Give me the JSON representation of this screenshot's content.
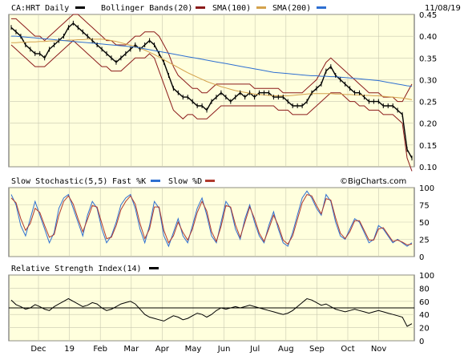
{
  "header": {
    "symbol_label": "CA:HRT Daily",
    "bb_label": "Bollinger Bands(20)",
    "sma100_label": "SMA(100)",
    "sma200_label": "SMA(200)",
    "date": "11/08/19"
  },
  "stoch_header": {
    "title": "Slow Stochastic(5,5)",
    "fast_label": "Fast %K",
    "slow_label": "Slow %D",
    "credit": "©BigCharts.com"
  },
  "rsi_header": {
    "title": "Relative Strength Index(14)"
  },
  "colors": {
    "price": "#000000",
    "bb": "#8b1a1a",
    "sma100": "#d4a24c",
    "sma200": "#2e6fd1",
    "fastk": "#2e6fd1",
    "slowd": "#b03a2e",
    "rsi": "#000000",
    "panel_bg": "#ffffdd"
  },
  "chart_data": [
    {
      "type": "line",
      "title": "CA:HRT Daily",
      "x_axis_labels": [
        "Dec",
        "19",
        "Feb",
        "Mar",
        "Apr",
        "May",
        "Jun",
        "Jul",
        "Aug",
        "Sep",
        "Oct",
        "Nov"
      ],
      "ylim": [
        0.1,
        0.45
      ],
      "yticks": [
        "0.10",
        "0.15",
        "0.20",
        "0.25",
        "0.30",
        "0.35",
        "0.40",
        "0.45"
      ],
      "series": [
        {
          "name": "CA:HRT Daily",
          "values": [
            0.42,
            0.41,
            0.4,
            0.38,
            0.37,
            0.36,
            0.36,
            0.35,
            0.37,
            0.38,
            0.39,
            0.4,
            0.42,
            0.43,
            0.42,
            0.41,
            0.4,
            0.39,
            0.38,
            0.37,
            0.36,
            0.35,
            0.34,
            0.35,
            0.36,
            0.37,
            0.38,
            0.37,
            0.38,
            0.39,
            0.38,
            0.36,
            0.34,
            0.31,
            0.28,
            0.27,
            0.26,
            0.26,
            0.25,
            0.24,
            0.24,
            0.23,
            0.25,
            0.26,
            0.27,
            0.26,
            0.25,
            0.26,
            0.27,
            0.26,
            0.27,
            0.26,
            0.27,
            0.27,
            0.27,
            0.26,
            0.26,
            0.26,
            0.25,
            0.24,
            0.24,
            0.24,
            0.25,
            0.27,
            0.28,
            0.29,
            0.32,
            0.33,
            0.31,
            0.3,
            0.29,
            0.28,
            0.27,
            0.27,
            0.26,
            0.25,
            0.25,
            0.25,
            0.24,
            0.24,
            0.24,
            0.23,
            0.22,
            0.14,
            0.12
          ]
        },
        {
          "name": "Bollinger Bands(20) upper",
          "values": [
            0.44,
            0.44,
            0.43,
            0.42,
            0.41,
            0.4,
            0.4,
            0.39,
            0.4,
            0.41,
            0.42,
            0.43,
            0.44,
            0.45,
            0.45,
            0.44,
            0.43,
            0.42,
            0.41,
            0.4,
            0.39,
            0.39,
            0.38,
            0.38,
            0.38,
            0.39,
            0.4,
            0.4,
            0.41,
            0.41,
            0.41,
            0.4,
            0.38,
            0.36,
            0.33,
            0.31,
            0.3,
            0.29,
            0.28,
            0.28,
            0.27,
            0.27,
            0.28,
            0.29,
            0.29,
            0.29,
            0.29,
            0.29,
            0.29,
            0.29,
            0.29,
            0.28,
            0.28,
            0.28,
            0.28,
            0.28,
            0.28,
            0.27,
            0.27,
            0.27,
            0.27,
            0.27,
            0.28,
            0.29,
            0.3,
            0.32,
            0.34,
            0.35,
            0.34,
            0.33,
            0.32,
            0.31,
            0.3,
            0.29,
            0.28,
            0.27,
            0.27,
            0.27,
            0.26,
            0.26,
            0.26,
            0.25,
            0.25,
            0.27,
            0.29
          ]
        },
        {
          "name": "Bollinger Bands(20) lower",
          "values": [
            0.38,
            0.37,
            0.36,
            0.35,
            0.34,
            0.33,
            0.33,
            0.33,
            0.34,
            0.35,
            0.36,
            0.37,
            0.38,
            0.39,
            0.38,
            0.37,
            0.36,
            0.35,
            0.34,
            0.33,
            0.33,
            0.32,
            0.32,
            0.32,
            0.33,
            0.34,
            0.35,
            0.35,
            0.35,
            0.36,
            0.35,
            0.32,
            0.29,
            0.26,
            0.23,
            0.22,
            0.21,
            0.22,
            0.22,
            0.21,
            0.21,
            0.21,
            0.22,
            0.23,
            0.24,
            0.24,
            0.24,
            0.24,
            0.24,
            0.24,
            0.24,
            0.24,
            0.24,
            0.24,
            0.24,
            0.24,
            0.23,
            0.23,
            0.23,
            0.22,
            0.22,
            0.22,
            0.22,
            0.23,
            0.24,
            0.25,
            0.26,
            0.27,
            0.27,
            0.27,
            0.26,
            0.25,
            0.25,
            0.24,
            0.24,
            0.23,
            0.23,
            0.23,
            0.22,
            0.22,
            0.22,
            0.21,
            0.2,
            0.12,
            0.09
          ]
        },
        {
          "name": "SMA(100)",
          "values": [
            0.385,
            0.385,
            0.386,
            0.386,
            0.387,
            0.387,
            0.388,
            0.388,
            0.389,
            0.389,
            0.39,
            0.39,
            0.391,
            0.391,
            0.392,
            0.392,
            0.393,
            0.393,
            0.393,
            0.393,
            0.392,
            0.39,
            0.388,
            0.385,
            0.382,
            0.379,
            0.376,
            0.372,
            0.368,
            0.363,
            0.358,
            0.352,
            0.346,
            0.34,
            0.334,
            0.328,
            0.322,
            0.316,
            0.311,
            0.306,
            0.301,
            0.296,
            0.292,
            0.288,
            0.284,
            0.281,
            0.278,
            0.275,
            0.273,
            0.271,
            0.269,
            0.267,
            0.266,
            0.265,
            0.264,
            0.263,
            0.263,
            0.263,
            0.263,
            0.264,
            0.265,
            0.266,
            0.267,
            0.268,
            0.268,
            0.268,
            0.268,
            0.268,
            0.267,
            0.267,
            0.266,
            0.266,
            0.265,
            0.265,
            0.264,
            0.264,
            0.263,
            0.263,
            0.262,
            0.261,
            0.26,
            0.259,
            0.258,
            0.256,
            0.254
          ]
        },
        {
          "name": "SMA(200)",
          "values": [
            0.4,
            0.4,
            0.399,
            0.398,
            0.397,
            0.396,
            0.395,
            0.394,
            0.393,
            0.392,
            0.391,
            0.39,
            0.389,
            0.388,
            0.387,
            0.386,
            0.385,
            0.384,
            0.383,
            0.382,
            0.381,
            0.38,
            0.379,
            0.378,
            0.377,
            0.376,
            0.375,
            0.373,
            0.371,
            0.369,
            0.367,
            0.365,
            0.363,
            0.361,
            0.359,
            0.357,
            0.355,
            0.353,
            0.351,
            0.349,
            0.347,
            0.345,
            0.343,
            0.341,
            0.339,
            0.337,
            0.335,
            0.333,
            0.331,
            0.329,
            0.327,
            0.325,
            0.323,
            0.321,
            0.319,
            0.317,
            0.316,
            0.315,
            0.314,
            0.313,
            0.312,
            0.311,
            0.31,
            0.309,
            0.309,
            0.308,
            0.308,
            0.307,
            0.307,
            0.306,
            0.305,
            0.304,
            0.303,
            0.302,
            0.301,
            0.3,
            0.299,
            0.298,
            0.296,
            0.294,
            0.292,
            0.29,
            0.288,
            0.286,
            0.285
          ]
        }
      ]
    },
    {
      "type": "line",
      "title": "Slow Stochastic(5,5)",
      "ylim": [
        0,
        100
      ],
      "yticks": [
        "0",
        "25",
        "50",
        "75",
        "100"
      ],
      "series": [
        {
          "name": "Fast %K",
          "values": [
            90,
            75,
            45,
            30,
            55,
            80,
            60,
            40,
            20,
            35,
            70,
            85,
            90,
            70,
            50,
            30,
            60,
            80,
            70,
            40,
            20,
            30,
            50,
            75,
            85,
            90,
            70,
            40,
            20,
            45,
            80,
            70,
            30,
            15,
            35,
            55,
            30,
            20,
            45,
            70,
            85,
            60,
            30,
            20,
            50,
            80,
            70,
            40,
            25,
            55,
            75,
            50,
            30,
            20,
            45,
            65,
            40,
            20,
            15,
            35,
            60,
            85,
            95,
            85,
            70,
            60,
            90,
            80,
            50,
            30,
            25,
            40,
            55,
            50,
            35,
            20,
            25,
            45,
            40,
            30,
            20,
            25,
            20,
            15,
            20
          ]
        },
        {
          "name": "Slow %D",
          "values": [
            85,
            78,
            55,
            38,
            48,
            70,
            64,
            45,
            28,
            32,
            60,
            80,
            88,
            76,
            55,
            36,
            54,
            74,
            72,
            48,
            26,
            28,
            45,
            68,
            80,
            88,
            76,
            48,
            26,
            40,
            72,
            72,
            38,
            20,
            30,
            50,
            35,
            24,
            40,
            64,
            80,
            66,
            36,
            22,
            44,
            74,
            72,
            46,
            28,
            50,
            72,
            55,
            34,
            22,
            40,
            60,
            45,
            24,
            18,
            30,
            54,
            78,
            90,
            88,
            74,
            62,
            84,
            82,
            56,
            34,
            26,
            36,
            52,
            52,
            38,
            24,
            24,
            40,
            42,
            32,
            22,
            24,
            21,
            17,
            18
          ]
        }
      ]
    },
    {
      "type": "line",
      "title": "Relative Strength Index(14)",
      "ylim": [
        0,
        100
      ],
      "yticks": [
        "0",
        "20",
        "40",
        "60",
        "80",
        "100"
      ],
      "series": [
        {
          "name": "RSI(14)",
          "values": [
            62,
            55,
            52,
            48,
            50,
            55,
            52,
            48,
            46,
            52,
            56,
            60,
            64,
            60,
            56,
            52,
            54,
            58,
            56,
            50,
            46,
            48,
            52,
            56,
            58,
            60,
            56,
            48,
            40,
            36,
            34,
            32,
            30,
            34,
            38,
            36,
            32,
            34,
            38,
            42,
            40,
            36,
            40,
            46,
            50,
            48,
            50,
            52,
            50,
            52,
            54,
            52,
            50,
            48,
            46,
            44,
            42,
            40,
            42,
            46,
            52,
            58,
            64,
            62,
            58,
            54,
            56,
            52,
            48,
            46,
            44,
            46,
            48,
            46,
            44,
            42,
            44,
            46,
            44,
            42,
            40,
            38,
            36,
            22,
            26
          ]
        }
      ]
    }
  ]
}
